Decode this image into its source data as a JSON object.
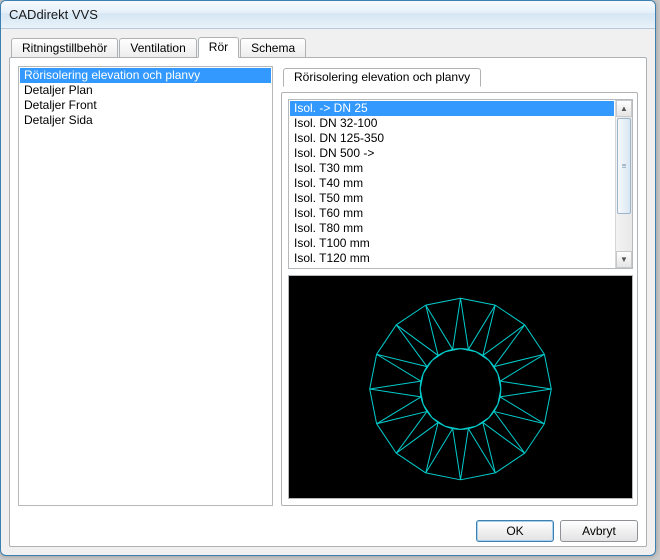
{
  "window": {
    "title": "CADdirekt VVS"
  },
  "tabs": [
    {
      "label": "Ritningstillbehör"
    },
    {
      "label": "Ventilation"
    },
    {
      "label": "Rör"
    },
    {
      "label": "Schema"
    }
  ],
  "tabs_active_index": 2,
  "left_list": {
    "items": [
      "Rörisolering elevation och planvy",
      "Detaljer Plan",
      "Detaljer Front",
      "Detaljer Sida"
    ],
    "selected_index": 0
  },
  "subtab": {
    "label": "Rörisolering elevation och planvy"
  },
  "detail_list": {
    "items": [
      "Isol. -> DN 25",
      "Isol. DN 32-100",
      "Isol. DN 125-350",
      "Isol. DN 500 ->",
      "Isol. T30 mm",
      "Isol. T40 mm",
      "Isol. T50 mm",
      "Isol. T60 mm",
      "Isol. T80 mm",
      "Isol. T100 mm",
      "Isol. T120 mm"
    ],
    "selected_index": 0
  },
  "preview": {
    "background": "#000000",
    "stroke": "#00cccc",
    "stroke_width": 1,
    "outer_radius": 90,
    "inner_radius": 40,
    "segments": 16
  },
  "buttons": {
    "ok": "OK",
    "cancel": "Avbryt"
  },
  "colors": {
    "selection_bg": "#3399ff",
    "selection_fg": "#ffffff",
    "border": "#aeb2b5"
  }
}
